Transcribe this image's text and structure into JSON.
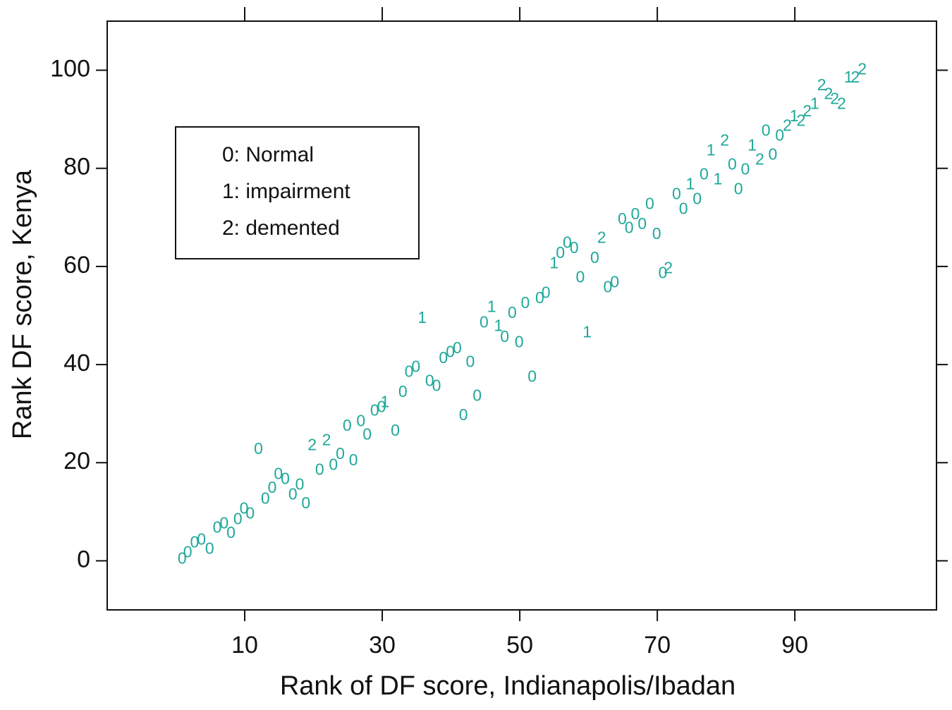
{
  "chart_data": {
    "type": "scatter",
    "xlabel": "Rank of DF score, Indianapolis/Ibadan",
    "ylabel": "Rank DF score, Kenya",
    "xlim": [
      -10,
      110.6
    ],
    "ylim": [
      -10,
      110
    ],
    "xticks": [
      10,
      30,
      50,
      70,
      90
    ],
    "yticks": [
      0,
      20,
      40,
      60,
      80,
      100
    ],
    "grid": false,
    "legend": "upper left",
    "series": [
      {
        "name": "0: Normal",
        "marker": "0",
        "color": "#1fa89a",
        "x": [
          0.9,
          1.7,
          2.7,
          3.7,
          4.9,
          6.0,
          7.0,
          8.0,
          9.0,
          9.9,
          10.8,
          12.0,
          13.0,
          14.0,
          14.9,
          15.9,
          17.0,
          18.0,
          18.9,
          20.9,
          22.9,
          23.9,
          24.9,
          25.8,
          26.9,
          27.8,
          28.9,
          29.9,
          31.9,
          33.0,
          33.9,
          34.9,
          36.9,
          37.9,
          38.9,
          39.9,
          40.9,
          41.8,
          42.8,
          43.8,
          44.8,
          47.8,
          48.9,
          49.9,
          50.8,
          51.8,
          52.9,
          53.8,
          55.9,
          56.9,
          57.9,
          58.8,
          60.9,
          62.8,
          63.8,
          64.9,
          65.9,
          66.8,
          67.8,
          68.9,
          69.9,
          70.8,
          72.8,
          73.8,
          75.8,
          76.8,
          80.9,
          81.8,
          82.8,
          85.8,
          86.8,
          87.8
        ],
        "y": [
          0.3,
          1.6,
          3.6,
          4.2,
          2.3,
          6.6,
          7.5,
          5.5,
          8.3,
          10.5,
          9.5,
          22.6,
          12.5,
          14.7,
          17.5,
          16.5,
          13.4,
          15.4,
          11.6,
          18.4,
          19.4,
          21.6,
          27.4,
          20.3,
          28.3,
          25.6,
          30.5,
          31.2,
          26.4,
          34.3,
          38.4,
          39.4,
          36.5,
          35.5,
          41.2,
          42.4,
          43.2,
          29.5,
          40.4,
          33.5,
          48.4,
          45.5,
          50.4,
          44.4,
          52.4,
          37.4,
          53.4,
          54.5,
          62.6,
          64.7,
          63.6,
          57.6,
          61.6,
          55.6,
          56.6,
          69.5,
          67.7,
          70.5,
          68.5,
          72.6,
          66.5,
          58.5,
          74.6,
          71.6,
          73.6,
          78.6,
          80.6,
          75.6,
          79.6,
          87.5,
          82.6,
          86.5
        ]
      },
      {
        "name": "1: impairment",
        "marker": "1",
        "color": "#1fa89a",
        "x": [
          30.4,
          35.8,
          45.9,
          46.9,
          55.0,
          59.8,
          74.8,
          77.8,
          78.8,
          83.8,
          89.9,
          92.9,
          97.8
        ],
        "y": [
          32.2,
          49.4,
          51.6,
          47.7,
          60.5,
          46.4,
          76.6,
          83.5,
          77.6,
          84.5,
          90.5,
          93.0,
          98.4
        ]
      },
      {
        "name": "2: demented",
        "marker": "2",
        "color": "#1fa89a",
        "x": [
          19.8,
          21.9,
          61.9,
          71.6,
          79.8,
          84.9,
          88.9,
          90.9,
          91.8,
          93.9,
          94.9,
          95.8,
          96.8,
          98.8,
          99.8
        ],
        "y": [
          23.4,
          24.4,
          65.7,
          59.5,
          85.5,
          81.6,
          88.5,
          89.5,
          91.5,
          96.8,
          95.0,
          94.0,
          93.0,
          98.4,
          100.0
        ]
      }
    ]
  }
}
